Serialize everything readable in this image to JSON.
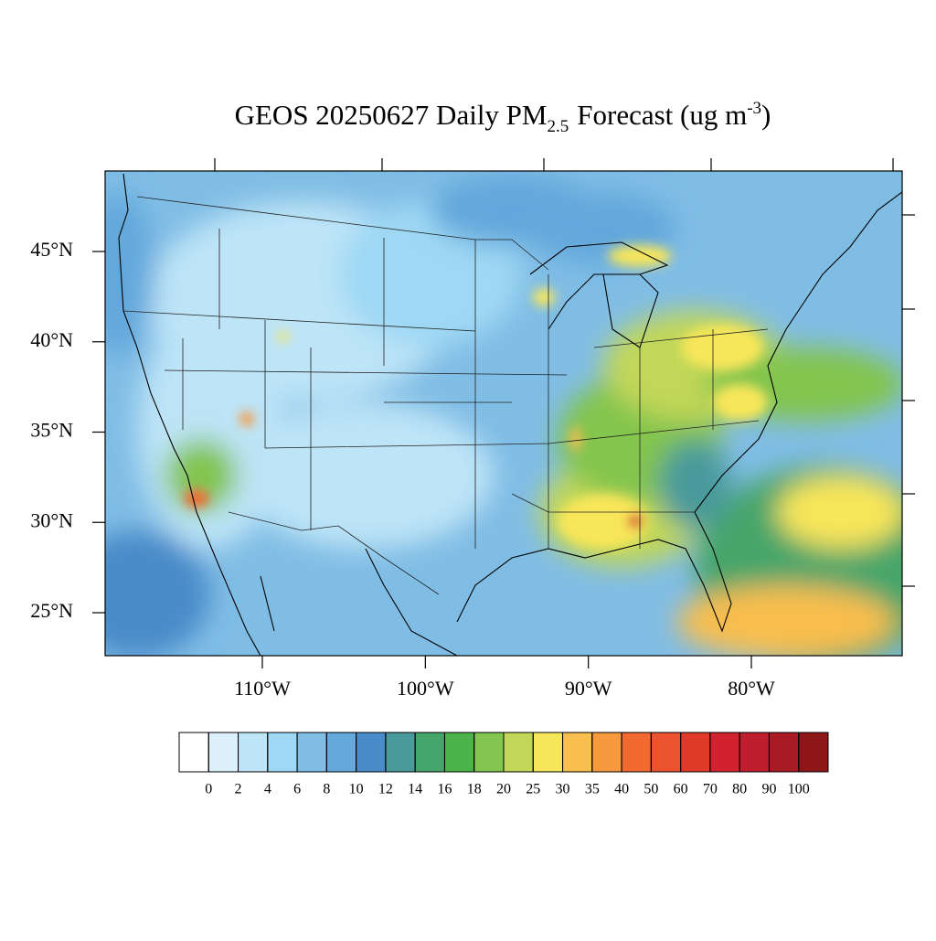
{
  "title": {
    "main": "GEOS 20250627 Daily PM",
    "sub": "2.5",
    "mid": "Forecast (ug m",
    "sup": "-3",
    "end": ")"
  },
  "lat_ticks": [
    {
      "value": 45,
      "label": "45°N"
    },
    {
      "value": 40,
      "label": "40°N"
    },
    {
      "value": 35,
      "label": "35°N"
    },
    {
      "value": 30,
      "label": "30°N"
    },
    {
      "value": 25,
      "label": "25°N"
    }
  ],
  "lon_ticks": [
    {
      "value": -110,
      "label": "110°W"
    },
    {
      "value": -100,
      "label": "100°W"
    },
    {
      "value": -90,
      "label": "90°W"
    },
    {
      "value": -80,
      "label": "80°W"
    }
  ],
  "colorbar": {
    "levels": [
      0,
      2,
      4,
      6,
      8,
      10,
      12,
      14,
      16,
      18,
      20,
      25,
      30,
      35,
      40,
      50,
      60,
      70,
      80,
      90,
      100
    ],
    "colors": [
      "#ffffff",
      "#dcf0fb",
      "#bde4f7",
      "#9ed8f4",
      "#80bde5",
      "#64a8dc",
      "#4a8bc9",
      "#4a9a9c",
      "#46a56a",
      "#4cb34a",
      "#83c54e",
      "#c2d758",
      "#f8e65a",
      "#f8be4e",
      "#f79a3e",
      "#f26a30",
      "#eb5230",
      "#e03a2a",
      "#d22230",
      "#be1e2d",
      "#a81a24",
      "#8e1619"
    ]
  }
}
